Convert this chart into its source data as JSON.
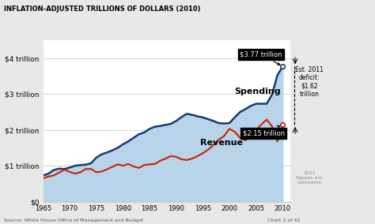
{
  "title": "INFLATION-ADJUSTED TRILLIONS OF DOLLARS (2010)",
  "source": "Source: White House Office of Management and Budget",
  "chart_num": "Chart 2 of 42",
  "years": [
    1965,
    1966,
    1967,
    1968,
    1969,
    1970,
    1971,
    1972,
    1973,
    1974,
    1975,
    1976,
    1977,
    1978,
    1979,
    1980,
    1981,
    1982,
    1983,
    1984,
    1985,
    1986,
    1987,
    1988,
    1989,
    1990,
    1991,
    1992,
    1993,
    1994,
    1995,
    1996,
    1997,
    1998,
    1999,
    2000,
    2001,
    2002,
    2003,
    2004,
    2005,
    2006,
    2007,
    2008,
    2009,
    2010
  ],
  "spending": [
    0.73,
    0.78,
    0.88,
    0.92,
    0.91,
    0.95,
    1.0,
    1.02,
    1.03,
    1.07,
    1.23,
    1.32,
    1.37,
    1.43,
    1.5,
    1.6,
    1.68,
    1.78,
    1.88,
    1.93,
    2.03,
    2.09,
    2.11,
    2.14,
    2.17,
    2.25,
    2.36,
    2.45,
    2.42,
    2.38,
    2.35,
    2.3,
    2.25,
    2.19,
    2.18,
    2.19,
    2.35,
    2.5,
    2.58,
    2.67,
    2.73,
    2.73,
    2.73,
    2.98,
    3.52,
    3.77
  ],
  "revenue": [
    0.65,
    0.7,
    0.73,
    0.81,
    0.89,
    0.83,
    0.78,
    0.82,
    0.91,
    0.91,
    0.82,
    0.84,
    0.9,
    0.97,
    1.04,
    1.0,
    1.05,
    0.98,
    0.94,
    1.02,
    1.04,
    1.05,
    1.14,
    1.2,
    1.27,
    1.25,
    1.18,
    1.16,
    1.2,
    1.27,
    1.35,
    1.45,
    1.58,
    1.73,
    1.83,
    2.03,
    1.95,
    1.78,
    1.71,
    1.82,
    2.0,
    2.15,
    2.29,
    2.1,
    1.68,
    2.15
  ],
  "spending_color": "#1a3a6b",
  "revenue_color": "#cc2200",
  "fill_color": "#b8d4ea",
  "bg_color": "#e8e8e8",
  "plot_bg": "#ffffff",
  "yticks": [
    0,
    1,
    2,
    3,
    4
  ],
  "ylabels": [
    "$0",
    "$1 trillion",
    "$2 trillion",
    "$3 trillion",
    "$4 trillion"
  ],
  "ylim": [
    0,
    4.5
  ],
  "annotation_spending_val": "$3.77 trillion",
  "annotation_revenue_val": "$2.15 trillion",
  "annotation_deficit": "Est. 2011\ndeficit:\n$1.62\ntrillion"
}
